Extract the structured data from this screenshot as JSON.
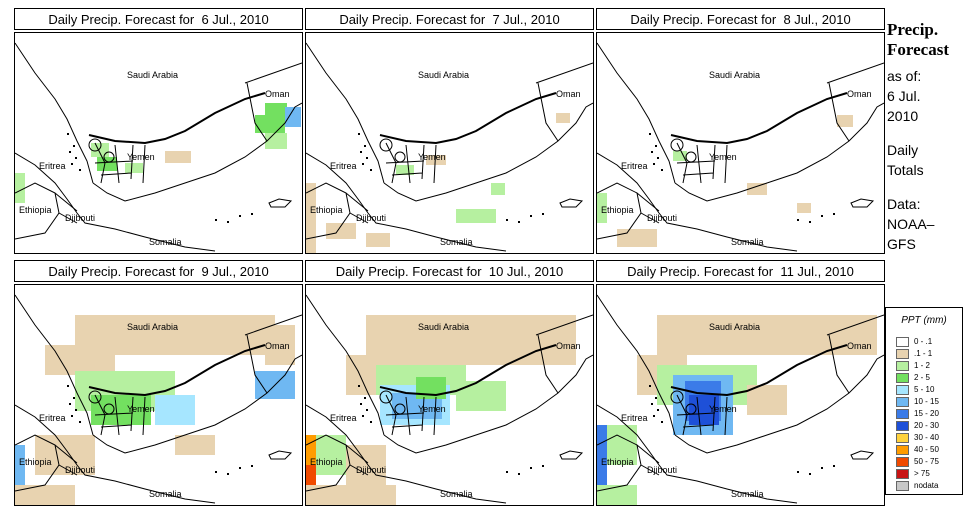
{
  "panels": [
    {
      "title": "Daily Precip. Forecast for  6 Jul., 2010",
      "day": 0
    },
    {
      "title": "Daily Precip. Forecast for  7 Jul., 2010",
      "day": 1
    },
    {
      "title": "Daily Precip. Forecast for  8 Jul., 2010",
      "day": 2
    },
    {
      "title": "Daily Precip. Forecast for  9 Jul., 2010",
      "day": 3
    },
    {
      "title": "Daily Precip. Forecast for  10 Jul., 2010",
      "day": 4
    },
    {
      "title": "Daily Precip. Forecast for  11 Jul., 2010",
      "day": 5
    }
  ],
  "map_labels": {
    "saudi": "Saudi Arabia",
    "oman": "Oman",
    "yemen": "Yemen",
    "eritrea": "Eritrea",
    "ethiopia": "Ethiopia",
    "djibouti": "Djibouti",
    "somalia": "Somalia"
  },
  "side": {
    "title_line1": "Precip.",
    "title_line2": "Forecast",
    "asof_line1": "as of:",
    "asof_line2": "6 Jul.",
    "asof_line3": "2010",
    "totals_line1": "Daily",
    "totals_line2": "Totals",
    "data_line1": "Data:",
    "data_line2": "NOAA–",
    "data_line3": "GFS"
  },
  "legend": {
    "title": "PPT (mm)",
    "items": [
      {
        "label": "0 - .1",
        "color": "#ffffff"
      },
      {
        "label": ".1 - 1",
        "color": "#e8d3b0"
      },
      {
        "label": "1 - 2",
        "color": "#b6f0a0"
      },
      {
        "label": "2 - 5",
        "color": "#73e060"
      },
      {
        "label": "5 - 10",
        "color": "#a6e6ff"
      },
      {
        "label": "10 - 15",
        "color": "#6fb8f2"
      },
      {
        "label": "15 - 20",
        "color": "#3b7be8"
      },
      {
        "label": "20 - 30",
        "color": "#1e50d8"
      },
      {
        "label": "30 - 40",
        "color": "#ffd23c"
      },
      {
        "label": "40 - 50",
        "color": "#ff9c00"
      },
      {
        "label": "50 - 75",
        "color": "#f04a00"
      },
      {
        "label": "> 75",
        "color": "#c81414"
      },
      {
        "label": "nodata",
        "color": "#c8c8c8"
      }
    ]
  }
}
